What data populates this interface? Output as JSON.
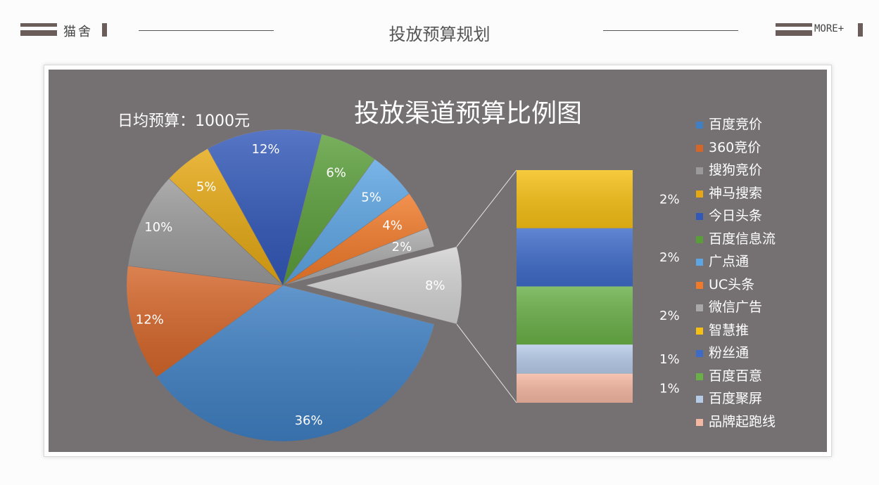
{
  "header": {
    "logo_text": "猫舍",
    "page_title": "投放预算规划",
    "more_label": "MORE+"
  },
  "colors": {
    "accent": "#6b5d59",
    "chart_bg": "#757071"
  },
  "chart_data": {
    "type": "bar-of-pie",
    "title": "投放渠道预算比例图",
    "annotation": "日均预算：1000元",
    "legend_position": "right",
    "series": [
      {
        "name": "百度竞价",
        "value": 36,
        "label": "36%",
        "color": "#3f7fc2"
      },
      {
        "name": "360竞价",
        "value": 12,
        "label": "12%",
        "color": "#d4662a"
      },
      {
        "name": "搜狗竞价",
        "value": 10,
        "label": "10%",
        "color": "#9a9a9a"
      },
      {
        "name": "神马搜索",
        "value": 5,
        "label": "5%",
        "color": "#e5a813"
      },
      {
        "name": "今日头条",
        "value": 12,
        "label": "12%",
        "color": "#3258b8"
      },
      {
        "name": "百度信息流",
        "value": 6,
        "label": "6%",
        "color": "#5a9e3a"
      },
      {
        "name": "广点通",
        "value": 5,
        "label": "5%",
        "color": "#5da5e3"
      },
      {
        "name": "UC头条",
        "value": 4,
        "label": "4%",
        "color": "#f07a2a"
      },
      {
        "name": "微信广告",
        "value": 2,
        "label": "2%",
        "color": "#a9a9a9"
      }
    ],
    "other": {
      "value": 8,
      "label": "8%",
      "color": "#d3d2d2",
      "breakdown": [
        {
          "name": "智慧推",
          "value": 2,
          "label": "2%",
          "color": "#f5bf14"
        },
        {
          "name": "粉丝通",
          "value": 2,
          "label": "2%",
          "color": "#3e6bc8"
        },
        {
          "name": "百度百意",
          "value": 2,
          "label": "2%",
          "color": "#6ab048"
        },
        {
          "name": "百度聚屏",
          "value": 1,
          "label": "1%",
          "color": "#b6cbe8"
        },
        {
          "name": "品牌起跑线",
          "value": 1,
          "label": "1%",
          "color": "#f4b7a2"
        }
      ]
    }
  }
}
